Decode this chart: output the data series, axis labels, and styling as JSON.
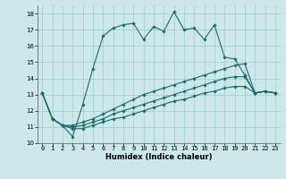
{
  "xlabel": "Humidex (Indice chaleur)",
  "ylabel": "",
  "xlim": [
    -0.5,
    23.5
  ],
  "ylim": [
    10,
    18.5
  ],
  "yticks": [
    10,
    11,
    12,
    13,
    14,
    15,
    16,
    17,
    18
  ],
  "xticks": [
    0,
    1,
    2,
    3,
    4,
    5,
    6,
    7,
    8,
    9,
    10,
    11,
    12,
    13,
    14,
    15,
    16,
    17,
    18,
    19,
    20,
    21,
    22,
    23
  ],
  "background_color": "#cce8e8",
  "line_color": "#1a6b6b",
  "grid_color": "#99cccc",
  "tick_fontsize": 5.0,
  "xlabel_fontsize": 6.0,
  "lines": [
    [
      13.1,
      11.5,
      11.1,
      10.4,
      12.4,
      14.6,
      16.6,
      17.1,
      17.3,
      17.4,
      16.4,
      17.2,
      16.9,
      18.1,
      17.0,
      17.1,
      16.4,
      17.3,
      15.3,
      15.2,
      14.2,
      13.1,
      13.2,
      13.1
    ],
    [
      13.1,
      11.5,
      11.1,
      11.1,
      11.3,
      11.5,
      11.8,
      12.1,
      12.4,
      12.7,
      13.0,
      13.2,
      13.4,
      13.6,
      13.8,
      14.0,
      14.2,
      14.4,
      14.6,
      14.8,
      14.9,
      13.1,
      13.2,
      13.1
    ],
    [
      13.1,
      11.5,
      11.1,
      11.0,
      11.1,
      11.3,
      11.5,
      11.8,
      12.0,
      12.2,
      12.4,
      12.6,
      12.8,
      13.0,
      13.2,
      13.4,
      13.6,
      13.8,
      14.0,
      14.1,
      14.1,
      13.1,
      13.2,
      13.1
    ],
    [
      13.1,
      11.5,
      11.1,
      10.9,
      10.9,
      11.1,
      11.3,
      11.5,
      11.6,
      11.8,
      12.0,
      12.2,
      12.4,
      12.6,
      12.7,
      12.9,
      13.1,
      13.2,
      13.4,
      13.5,
      13.5,
      13.1,
      13.2,
      13.1
    ]
  ]
}
